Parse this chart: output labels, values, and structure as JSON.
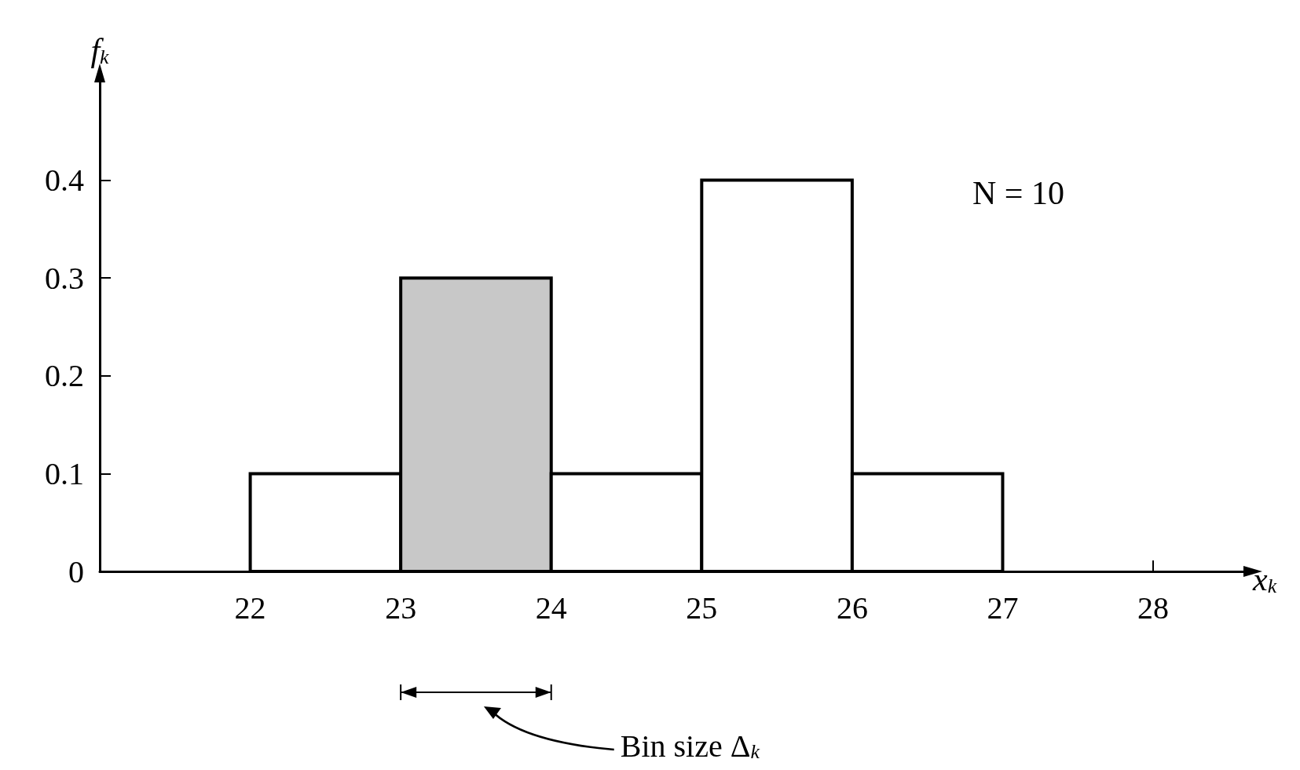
{
  "chart_data": {
    "type": "histogram",
    "xlabel": "x$_{k}$",
    "ylabel": "f$_{k}$",
    "bins": [
      22,
      23,
      24,
      25,
      26,
      27
    ],
    "values": [
      0.1,
      0.3,
      0.1,
      0.4,
      0.1
    ],
    "colors": [
      "#ffffff",
      "#c8c8c8",
      "#ffffff",
      "#ffffff",
      "#ffffff"
    ],
    "xlim": [
      21,
      28.6
    ],
    "xticks": [
      22,
      23,
      24,
      25,
      26,
      27,
      28
    ],
    "ylim": [
      0,
      0.5
    ],
    "yticks": [
      0,
      0.1,
      0.2,
      0.3,
      0.4
    ],
    "grid": false,
    "annotations": [
      "N = 10",
      "Bin size Δ$_{k}$"
    ]
  }
}
